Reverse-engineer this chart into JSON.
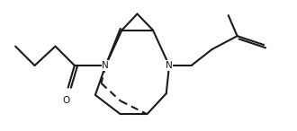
{
  "bg_color": "#ffffff",
  "line_color": "#1a1a1a",
  "line_width": 1.5,
  "figsize": [
    3.3,
    1.46
  ],
  "dpi": 100,
  "xlim": [
    0,
    10
  ],
  "ylim": [
    0,
    4.4
  ]
}
